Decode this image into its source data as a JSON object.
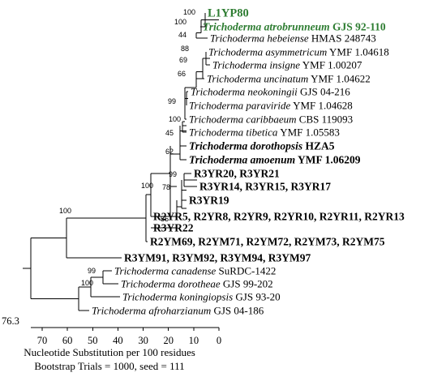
{
  "tree": {
    "leaves": [
      {
        "id": "L1YP80",
        "parts": [
          {
            "t": "L1YP80",
            "i": false
          }
        ],
        "style": "bold green big"
      },
      {
        "id": "atrobrunneum",
        "parts": [
          {
            "t": "Trichoderma atrobrunneum",
            "i": true
          },
          {
            "t": " GJS 92-110",
            "i": false
          }
        ],
        "style": "bold green"
      },
      {
        "id": "hebeiense",
        "parts": [
          {
            "t": "Trichoderma hebeiense",
            "i": true
          },
          {
            "t": " HMAS 248743",
            "i": false
          }
        ],
        "style": ""
      },
      {
        "id": "asymmetricum",
        "parts": [
          {
            "t": "Trichoderma asymmetricum",
            "i": true
          },
          {
            "t": " YMF 1.04618",
            "i": false
          }
        ],
        "style": ""
      },
      {
        "id": "insigne",
        "parts": [
          {
            "t": "Trichoderma insigne",
            "i": true
          },
          {
            "t": " YMF 1.00207",
            "i": false
          }
        ],
        "style": ""
      },
      {
        "id": "uncinatum",
        "parts": [
          {
            "t": "Trichoderma uncinatum",
            "i": true
          },
          {
            "t": " YMF 1.04622",
            "i": false
          }
        ],
        "style": ""
      },
      {
        "id": "neokoningii",
        "parts": [
          {
            "t": "Trichoderma neokoningii",
            "i": true
          },
          {
            "t": " GJS 04-216",
            "i": false
          }
        ],
        "style": ""
      },
      {
        "id": "paraviride",
        "parts": [
          {
            "t": "Trichoderma paraviride",
            "i": true
          },
          {
            "t": " YMF 1.04628",
            "i": false
          }
        ],
        "style": ""
      },
      {
        "id": "caribbaeum",
        "parts": [
          {
            "t": "Trichoderma caribbaeum",
            "i": true
          },
          {
            "t": " CBS 119093",
            "i": false
          }
        ],
        "style": ""
      },
      {
        "id": "tibetica",
        "parts": [
          {
            "t": "Trichoderma tibetica",
            "i": true
          },
          {
            "t": " YMF 1.05583",
            "i": false
          }
        ],
        "style": ""
      },
      {
        "id": "dorothopsis",
        "parts": [
          {
            "t": "Trichoderma dorothopsis",
            "i": true
          },
          {
            "t": " HZA5",
            "i": false
          }
        ],
        "style": "bold"
      },
      {
        "id": "amoenum",
        "parts": [
          {
            "t": "Trichoderma amoenum",
            "i": true
          },
          {
            "t": " YMF 1.06209",
            "i": false
          }
        ],
        "style": "bold"
      },
      {
        "id": "R3YR20",
        "parts": [
          {
            "t": "R3YR20, R3YR21",
            "i": false
          }
        ],
        "style": "bold"
      },
      {
        "id": "R3YR14",
        "parts": [
          {
            "t": "R3YR14, R3YR15, R3YR17",
            "i": false
          }
        ],
        "style": "bold"
      },
      {
        "id": "R3YR19",
        "parts": [
          {
            "t": "R3YR19",
            "i": false
          }
        ],
        "style": "bold"
      },
      {
        "id": "R2YR5",
        "parts": [
          {
            "t": "R2YR5, R2YR8, R2YR9, R2YR10, R2YR11, R2YR13",
            "i": false
          }
        ],
        "style": "bold"
      },
      {
        "id": "R3YR22",
        "parts": [
          {
            "t": "R3YR22",
            "i": false
          }
        ],
        "style": "bold"
      },
      {
        "id": "R2YM69",
        "parts": [
          {
            "t": "R2YM69, R2YM71, R2YM72, R2YM73, R2YM75",
            "i": false
          }
        ],
        "style": "bold"
      },
      {
        "id": "R3YM91",
        "parts": [
          {
            "t": "R3YM91, R3YM92, R3YM94, R3YM97",
            "i": false
          }
        ],
        "style": "bold"
      },
      {
        "id": "canadense",
        "parts": [
          {
            "t": "Trichoderma canadense",
            "i": true
          },
          {
            "t": " SuRDC-1422",
            "i": false
          }
        ],
        "style": ""
      },
      {
        "id": "dorotheae",
        "parts": [
          {
            "t": "Trichoderma dorotheae",
            "i": true
          },
          {
            "t": " GJS 99-202",
            "i": false
          }
        ],
        "style": ""
      },
      {
        "id": "koningiopsis",
        "parts": [
          {
            "t": "Trichoderma koningiopsis",
            "i": true
          },
          {
            "t": " GJS 93-20",
            "i": false
          }
        ],
        "style": ""
      },
      {
        "id": "afroharzianum",
        "parts": [
          {
            "t": "Trichoderma afroharzianum",
            "i": true
          },
          {
            "t": " GJS 04-186",
            "i": false
          }
        ],
        "style": ""
      }
    ],
    "bootstrap": [
      "100",
      "100",
      "44",
      "88",
      "69",
      "66",
      "99",
      "100",
      "45",
      "62",
      "99",
      "78",
      "55",
      "100",
      "100",
      "99",
      "100"
    ],
    "root_value": "76.3",
    "axis_ticks": [
      "70",
      "60",
      "50",
      "40",
      "30",
      "20",
      "10",
      "0"
    ]
  },
  "captions": {
    "line1": "Nucleotide Substitution per 100 residues",
    "line2": "Bootstrap Trials = 1000, seed = 111"
  }
}
